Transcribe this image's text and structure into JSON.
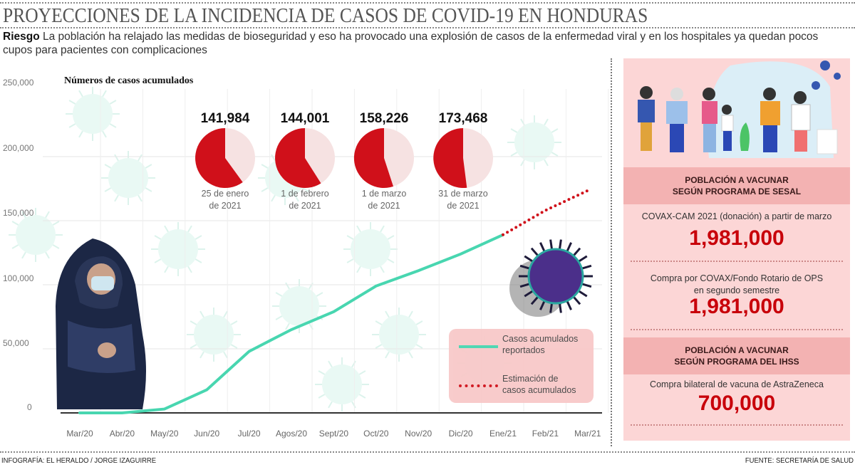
{
  "header": {
    "title": "PROYECCIONES DE LA INCIDENCIA DE CASOS DE COVID-19 EN HONDURAS",
    "lead": "Riesgo",
    "subtitle": "La población ha relajado las medidas de bioseguridad y eso ha provocado una explosión de casos de la enfermedad viral y en los hospitales ya quedan pocos cupos para pacientes con complicaciones"
  },
  "chart_data": {
    "type": "line",
    "title": "Números de casos acumulados",
    "x_categories": [
      "Mar/20",
      "Abr/20",
      "May/20",
      "Jun/20",
      "Jul/20",
      "Agos/20",
      "Sept/20",
      "Oct/20",
      "Nov/20",
      "Dic/20",
      "Ene/21",
      "Feb/21",
      "Mar/21"
    ],
    "y_ticks": [
      "250,000",
      "200,000",
      "150,000",
      "100,000",
      "50,000",
      "0"
    ],
    "ylim": [
      0,
      250000
    ],
    "grid": true,
    "series": [
      {
        "name": "Casos acumulados reportados",
        "style": "solid",
        "color": "#48d6b0",
        "points": [
          [
            "Mar/20",
            0
          ],
          [
            "Abr/20",
            0
          ],
          [
            "May/20",
            3000
          ],
          [
            "Jun/20",
            18000
          ],
          [
            "Jul/20",
            48000
          ],
          [
            "Agos/20",
            65000
          ],
          [
            "Sept/20",
            79000
          ],
          [
            "Oct/20",
            99000
          ],
          [
            "Nov/20",
            111000
          ],
          [
            "Dic/20",
            124000
          ],
          [
            "Ene/21",
            139000
          ]
        ]
      },
      {
        "name": "Estimación de casos acumulados",
        "style": "dotted",
        "color": "#d0101a",
        "points": [
          [
            "Ene/21",
            139000
          ],
          [
            "Feb/21",
            158000
          ],
          [
            "Mar/21",
            173468
          ]
        ]
      }
    ],
    "legend": {
      "position": "bottom-right",
      "items": [
        "Casos acumulados\nreportados",
        "Estimación de\ncasos acumulados"
      ]
    },
    "pies": [
      {
        "value": "141,984",
        "date": "25 de enero\nde 2021",
        "fill_fraction": 0.6
      },
      {
        "value": "144,001",
        "date": "1 de febrero\nde 2021",
        "fill_fraction": 0.59
      },
      {
        "value": "158,226",
        "date": "1 de marzo\nde 2021",
        "fill_fraction": 0.55
      },
      {
        "value": "173,468",
        "date": "31 de marzo\nde 2021",
        "fill_fraction": 0.52
      }
    ],
    "colors": {
      "pie": "#d0101a",
      "line": "#48d6b0"
    }
  },
  "panel": {
    "band1": "POBLACIÓN A VACUNAR\nSEGÚN PROGRAMA DE SESAL",
    "item1_label": "COVAX-CAM 2021 (donación) a partir de marzo",
    "item1_value": "1,981,000",
    "item2_label": "Compra por COVAX/Fondo Rotario de OPS\nen segundo semestre",
    "item2_value": "1,981,000",
    "band2": "POBLACIÓN A VACUNAR\nSEGÚN PROGRAMA DEL IHSS",
    "item3_label": "Compra bilateral de vacuna de AstraZeneca",
    "item3_value": "700,000"
  },
  "footer": {
    "credit": "INFOGRAFÍA: EL HERALDO / JORGE IZAGUIRRE",
    "source": "FUENTE: SECRETARÍA DE SALUD"
  }
}
